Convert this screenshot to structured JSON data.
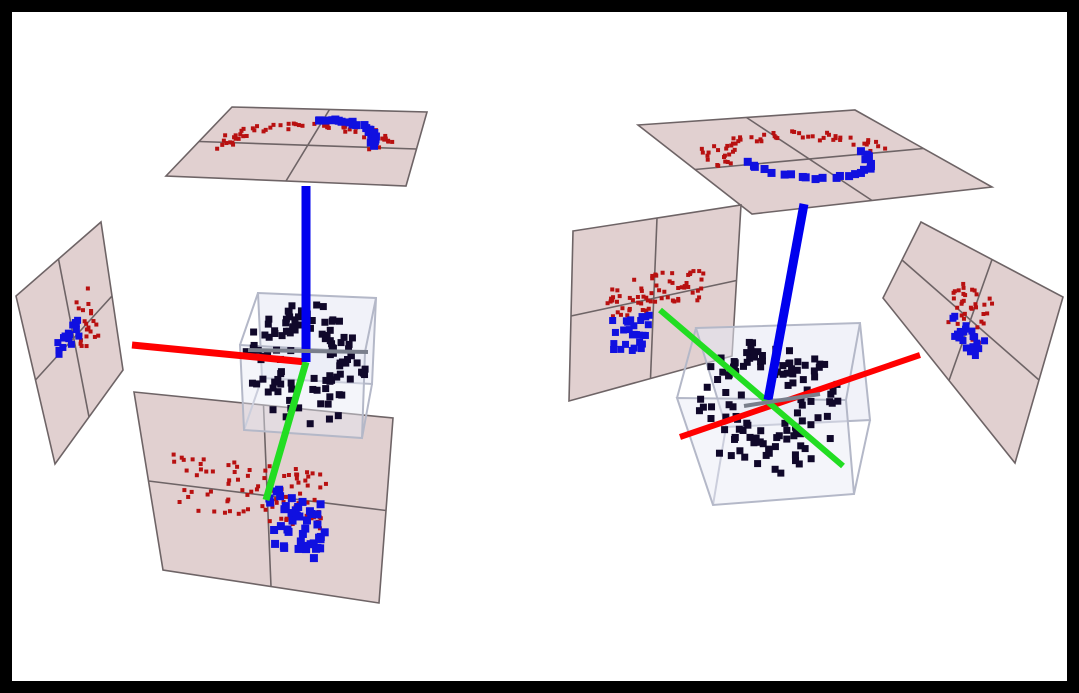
{
  "colors": {
    "background": "#ffffff",
    "border": "#000000",
    "plane_fill": "#dcc8c8",
    "plane_stroke": "#6e6466",
    "cube_fill": "#e6e8f4",
    "cube_stroke": "#b4b8c8",
    "points_main": "#10082a",
    "points_red": "#b81010",
    "points_blue": "#1010e0",
    "axis_x": "#ff0000",
    "axis_y": "#22dd22",
    "axis_z": "#0000ee"
  },
  "panels": [
    {
      "id": "left-view",
      "planes": [
        "top",
        "side",
        "front"
      ],
      "axes": [
        "x",
        "y",
        "z"
      ]
    },
    {
      "id": "right-view",
      "planes": [
        "top",
        "left",
        "right"
      ],
      "axes": [
        "x",
        "y",
        "z"
      ]
    }
  ]
}
